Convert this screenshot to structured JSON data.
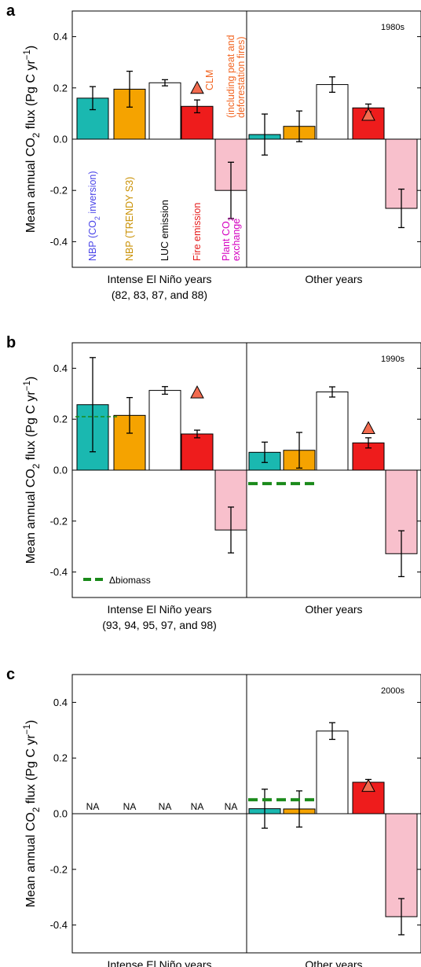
{
  "chart_data": [
    {
      "panel_label": "a",
      "decade": "1980s",
      "type": "bar",
      "ylabel": "Mean annual CO2 flux (Pg C yr-1)",
      "ylim": [
        -0.5,
        0.5
      ],
      "yticks": [
        0.4,
        0.2,
        0.0,
        -0.2,
        -0.4
      ],
      "ytick_labels": [
        "0.4",
        "0.2",
        "0.0",
        "-0.2",
        "-0.4"
      ],
      "groups": [
        {
          "label": "Intense El Niño years",
          "sublabel": "(82, 83, 87, and 88)"
        },
        {
          "label": "Other years",
          "sublabel": ""
        }
      ],
      "series": [
        {
          "name": "NBP (CO2 inversion)",
          "color": "#1ab8b0",
          "values": [
            0.16,
            0.018
          ],
          "err": [
            0.045,
            0.08
          ]
        },
        {
          "name": "NBP (TRENDY S3)",
          "color": "#f5a300",
          "values": [
            0.195,
            0.05
          ],
          "err": [
            0.07,
            0.06
          ]
        },
        {
          "name": "LUC emission",
          "color": "#ffffff",
          "values": [
            0.22,
            0.213
          ],
          "err": [
            0.012,
            0.03
          ]
        },
        {
          "name": "Fire emission",
          "color": "#ee1c1c",
          "values": [
            0.128,
            0.122
          ],
          "err": [
            0.025,
            0.015
          ]
        },
        {
          "name": "Plant CO2 exchange",
          "color": "#f8c0cc",
          "values": [
            -0.2,
            -0.27
          ],
          "err": [
            0.11,
            0.075
          ]
        }
      ],
      "clm": [
        0.2,
        0.095
      ],
      "na_labels": [],
      "dbiomass": null,
      "series_labels": [
        {
          "text": "NBP (CO2 inversion)",
          "color": "#4a45e8"
        },
        {
          "text": "NBP (TRENDY S3)",
          "color": "#c98f00"
        },
        {
          "text": "LUC emission",
          "color": "#000000"
        },
        {
          "text": "Fire emission",
          "color": "#e51b1b"
        },
        {
          "text": "Plant CO2 exchange",
          "color": "#d400c0"
        }
      ],
      "clm_label": "CLM",
      "clm_note_line1": "(including peat and",
      "clm_note_line2": "deforestation fires)",
      "clm_label_color": "#f26522"
    },
    {
      "panel_label": "b",
      "decade": "1990s",
      "type": "bar",
      "ylabel": "Mean annual CO2 flux (Pg C yr-1)",
      "ylim": [
        -0.5,
        0.5
      ],
      "yticks": [
        0.4,
        0.2,
        0.0,
        -0.2,
        -0.4
      ],
      "ytick_labels": [
        "0.4",
        "0.2",
        "0.0",
        "-0.2",
        "-0.4"
      ],
      "groups": [
        {
          "label": "Intense El Niño years",
          "sublabel": "(93, 94, 95, 97, and 98)"
        },
        {
          "label": "Other years",
          "sublabel": ""
        }
      ],
      "series": [
        {
          "name": "NBP (CO2 inversion)",
          "color": "#1ab8b0",
          "values": [
            0.257,
            0.07
          ],
          "err": [
            0.185,
            0.04
          ]
        },
        {
          "name": "NBP (TRENDY S3)",
          "color": "#f5a300",
          "values": [
            0.215,
            0.078
          ],
          "err": [
            0.07,
            0.07
          ]
        },
        {
          "name": "LUC emission",
          "color": "#ffffff",
          "values": [
            0.313,
            0.307
          ],
          "err": [
            0.015,
            0.02
          ]
        },
        {
          "name": "Fire emission",
          "color": "#ee1c1c",
          "values": [
            0.142,
            0.107
          ],
          "err": [
            0.015,
            0.02
          ]
        },
        {
          "name": "Plant CO2 exchange",
          "color": "#f8c0cc",
          "values": [
            -0.235,
            -0.328
          ],
          "err": [
            0.09,
            0.09
          ]
        }
      ],
      "clm": [
        0.305,
        0.165
      ],
      "na_labels": [],
      "dbiomass": {
        "values": [
          0.21,
          -0.053
        ],
        "label": "Δbiomass",
        "color": "#1a8a1a"
      }
    },
    {
      "panel_label": "c",
      "decade": "2000s",
      "type": "bar",
      "ylabel": "Mean annual CO2 flux (Pg C yr-1)",
      "ylim": [
        -0.5,
        0.5
      ],
      "yticks": [
        0.4,
        0.2,
        0.0,
        -0.2,
        -0.4
      ],
      "ytick_labels": [
        "0.4",
        "0.2",
        "0.0",
        "-0.2",
        "-0.4"
      ],
      "groups": [
        {
          "label": "Intense El Niño years",
          "sublabel": ""
        },
        {
          "label": "Other years",
          "sublabel": ""
        }
      ],
      "series": [
        {
          "name": "NBP (CO2 inversion)",
          "color": "#1ab8b0",
          "values": [
            null,
            0.018
          ],
          "err": [
            null,
            0.07
          ]
        },
        {
          "name": "NBP (TRENDY S3)",
          "color": "#f5a300",
          "values": [
            null,
            0.017
          ],
          "err": [
            null,
            0.065
          ]
        },
        {
          "name": "LUC emission",
          "color": "#ffffff",
          "values": [
            null,
            0.297
          ],
          "err": [
            null,
            0.03
          ]
        },
        {
          "name": "Fire emission",
          "color": "#ee1c1c",
          "values": [
            null,
            0.113
          ],
          "err": [
            null,
            0.01
          ]
        },
        {
          "name": "Plant CO2 exchange",
          "color": "#f8c0cc",
          "values": [
            null,
            -0.37
          ],
          "err": [
            null,
            0.065
          ]
        }
      ],
      "clm": [
        null,
        0.1
      ],
      "na_labels": [
        "NA",
        "NA",
        "NA",
        "NA",
        "NA"
      ],
      "dbiomass": {
        "values": [
          null,
          0.05
        ],
        "label": "",
        "color": "#1a8a1a"
      }
    }
  ]
}
